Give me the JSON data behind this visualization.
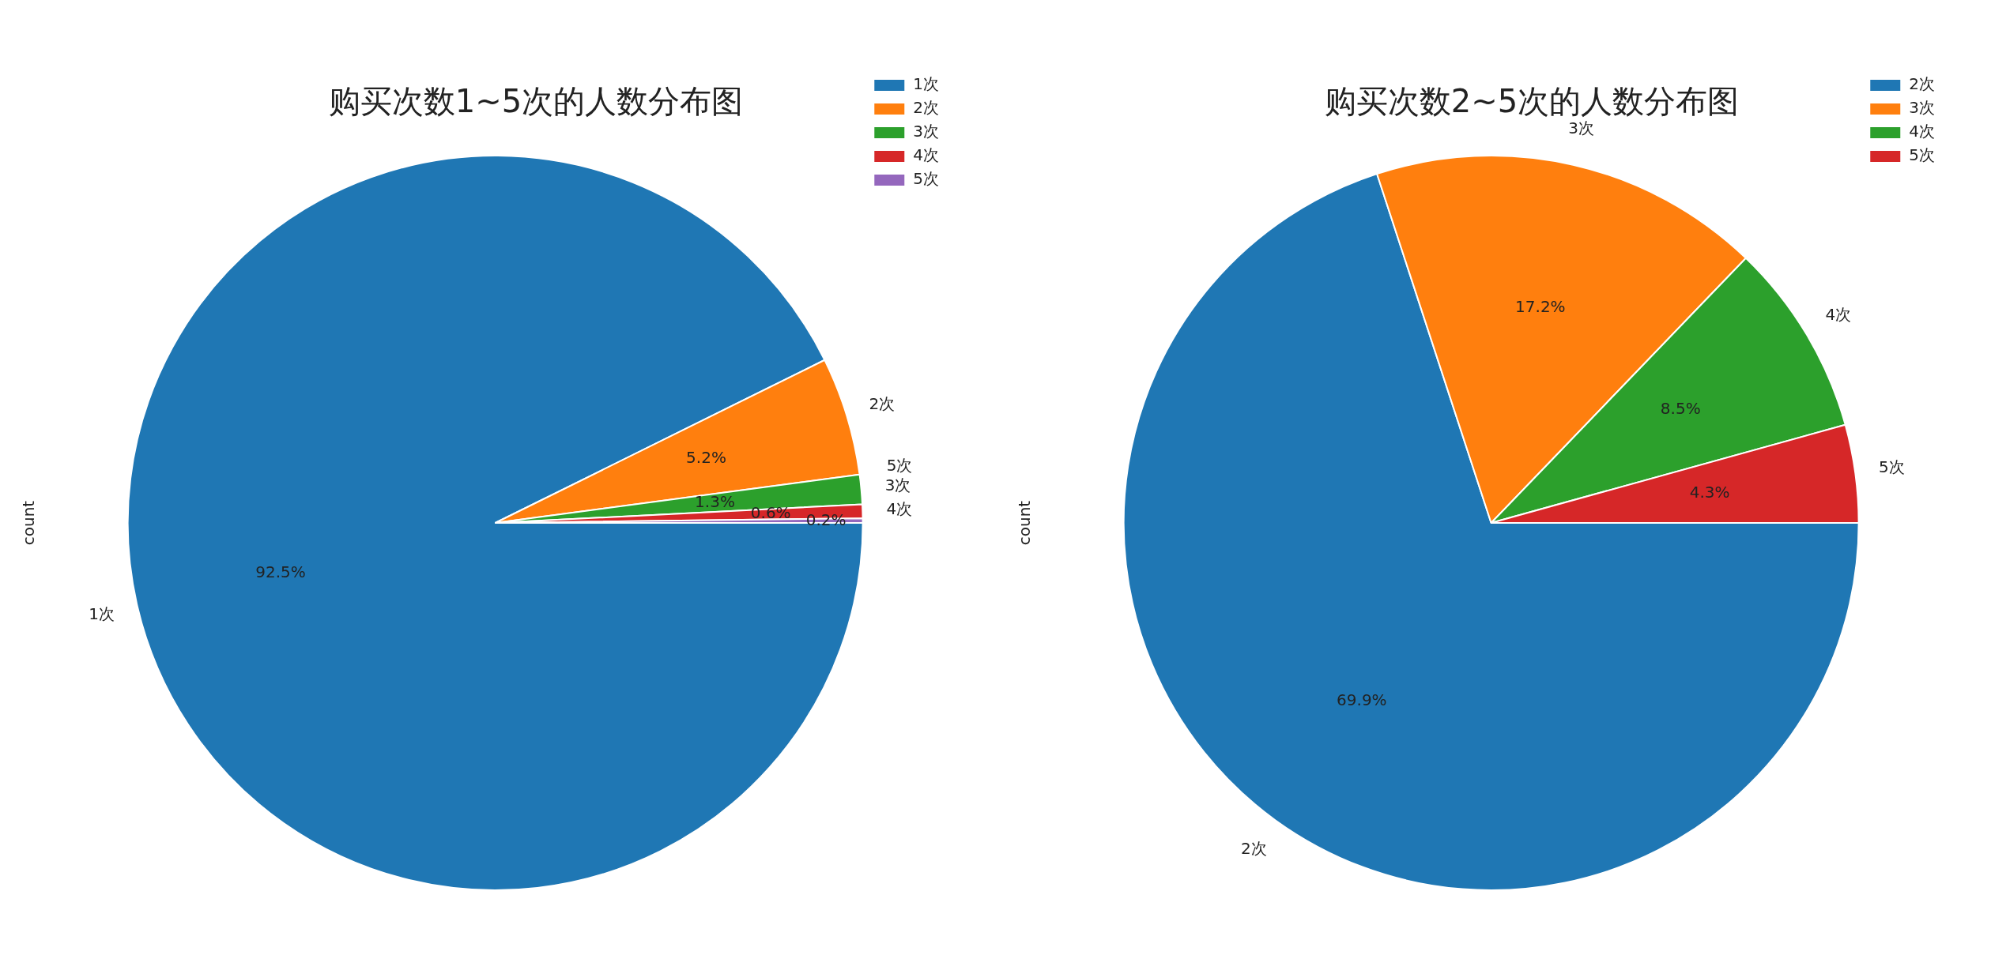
{
  "chart_data": [
    {
      "type": "pie",
      "title": "购买次数1~5次的人数分布图",
      "ylabel": "count",
      "categories": [
        "1次",
        "2次",
        "3次",
        "4次",
        "5次"
      ],
      "values": [
        92.5,
        5.2,
        1.3,
        0.6,
        0.2
      ],
      "value_labels": [
        "92.5%",
        "5.2%",
        "1.3%",
        "0.6%",
        "0.2%"
      ],
      "colors": [
        "#1f77b4",
        "#ff7f0e",
        "#2ca02c",
        "#d62728",
        "#9467bd"
      ],
      "legend": "top right"
    },
    {
      "type": "pie",
      "title": "购买次数2~5次的人数分布图",
      "ylabel": "count",
      "categories": [
        "2次",
        "3次",
        "4次",
        "5次"
      ],
      "values": [
        69.9,
        17.2,
        8.5,
        4.3
      ],
      "value_labels": [
        "69.9%",
        "17.2%",
        "8.5%",
        "4.3%"
      ],
      "colors": [
        "#1f77b4",
        "#ff7f0e",
        "#2ca02c",
        "#d62728"
      ],
      "legend": "top right"
    }
  ]
}
